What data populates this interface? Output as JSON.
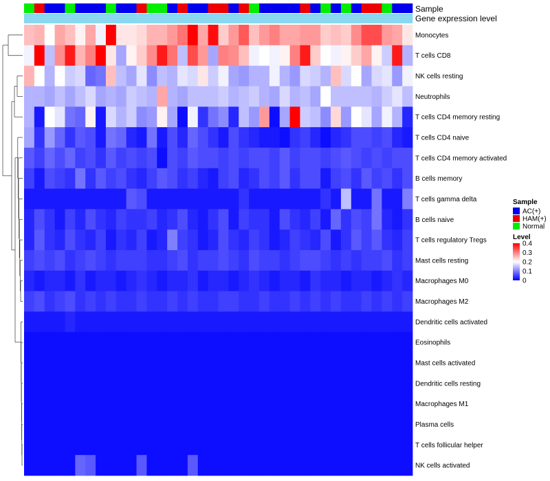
{
  "chart_data": {
    "type": "heatmap",
    "title": "",
    "annotation_rows": [
      "Sample",
      "Gene expression level"
    ],
    "rows": [
      "Monocytes",
      "T cells CD8",
      "NK cells resting",
      "Neutrophils",
      "T cells CD4 memory resting",
      "T cells CD4 naive",
      "T cells CD4 memory activated",
      "B cells memory",
      "T cells gamma delta",
      "B cells naive",
      "T cells regulatory  Tregs",
      "Mast cells resting",
      "Macrophages M0",
      "Macrophages M2",
      "Dendritic cells activated",
      "Eosinophils",
      "Mast cells activated",
      "Dendritic cells resting",
      "Macrophages M1",
      "Plasma cells",
      "T cells follicular helper",
      "NK cells activated"
    ],
    "sample_groups": [
      "Normal",
      "HAM",
      "AC",
      "AC",
      "Normal",
      "AC",
      "AC",
      "AC",
      "Normal",
      "AC",
      "AC",
      "HAM",
      "Normal",
      "Normal",
      "AC",
      "HAM",
      "AC",
      "AC",
      "HAM",
      "HAM",
      "AC",
      "HAM",
      "Normal",
      "AC",
      "AC",
      "AC",
      "AC",
      "HAM",
      "AC",
      "Normal",
      "AC",
      "Normal",
      "AC",
      "HAM",
      "HAM",
      "Normal",
      "AC",
      "AC"
    ],
    "sample_legend": {
      "title": "Sample",
      "entries": [
        {
          "key": "AC",
          "label": "AC(+)",
          "color": "#0000ee"
        },
        {
          "key": "HAM",
          "label": "HAM(+)",
          "color": "#ee0000"
        },
        {
          "key": "Normal",
          "label": "Normal",
          "color": "#00ee00"
        }
      ]
    },
    "expression_annotation_color": "#8ad8ef",
    "color_scale": {
      "title": "Level",
      "min": 0,
      "max": 0.4,
      "ticks": [
        "0.4",
        "0.3",
        "0.2",
        "0.1",
        "0"
      ],
      "colors": [
        "#0000ff",
        "#ffffff",
        "#ff0000"
      ]
    },
    "values": [
      [
        0.25,
        0.26,
        0.2,
        0.27,
        0.25,
        0.21,
        0.27,
        0.19,
        0.4,
        0.22,
        0.22,
        0.23,
        0.26,
        0.26,
        0.28,
        0.31,
        0.4,
        0.27,
        0.39,
        0.24,
        0.28,
        0.33,
        0.25,
        0.28,
        0.3,
        0.27,
        0.27,
        0.28,
        0.28,
        0.24,
        0.25,
        0.24,
        0.29,
        0.34,
        0.34,
        0.28,
        0.27,
        0.22
      ],
      [
        0.19,
        0.4,
        0.15,
        0.29,
        0.38,
        0.26,
        0.3,
        0.4,
        0.22,
        0.13,
        0.21,
        0.24,
        0.29,
        0.38,
        0.31,
        0.15,
        0.34,
        0.28,
        0.13,
        0.3,
        0.29,
        0.25,
        0.19,
        0.2,
        0.19,
        0.21,
        0.3,
        0.38,
        0.24,
        0.2,
        0.19,
        0.21,
        0.24,
        0.27,
        0.21,
        0.16,
        0.38,
        0.14
      ],
      [
        0.26,
        0.2,
        0.14,
        0.2,
        0.16,
        0.17,
        0.08,
        0.09,
        0.25,
        0.15,
        0.13,
        0.18,
        0.11,
        0.15,
        0.14,
        0.18,
        0.17,
        0.22,
        0.16,
        0.19,
        0.13,
        0.12,
        0.14,
        0.14,
        0.19,
        0.14,
        0.12,
        0.17,
        0.16,
        0.14,
        0.25,
        0.17,
        0.2,
        0.13,
        0.17,
        0.18,
        0.12,
        0.19
      ],
      [
        0.14,
        0.14,
        0.13,
        0.15,
        0.13,
        0.15,
        0.17,
        0.13,
        0.14,
        0.13,
        0.16,
        0.15,
        0.14,
        0.27,
        0.14,
        0.13,
        0.15,
        0.15,
        0.15,
        0.16,
        0.14,
        0.15,
        0.16,
        0.14,
        0.13,
        0.17,
        0.14,
        0.15,
        0.13,
        0.2,
        0.15,
        0.15,
        0.15,
        0.15,
        0.14,
        0.16,
        0.18,
        0.15
      ],
      [
        0.14,
        0.02,
        0.2,
        0.18,
        0.09,
        0.08,
        0.21,
        0.02,
        0.17,
        0.14,
        0.16,
        0.11,
        0.12,
        0.21,
        0.13,
        0.01,
        0.19,
        0.04,
        0.09,
        0.11,
        0.03,
        0.15,
        0.12,
        0.28,
        0.01,
        0.13,
        0.4,
        0.16,
        0.15,
        0.11,
        0.23,
        0.12,
        0.2,
        0.18,
        0.13,
        0.19,
        0.14,
        0.03
      ],
      [
        0.13,
        0.04,
        0.12,
        0.08,
        0.04,
        0.07,
        0.06,
        0.02,
        0.09,
        0.08,
        0.03,
        0.02,
        0.09,
        0.02,
        0.06,
        0.03,
        0.08,
        0.06,
        0.04,
        0.02,
        0.06,
        0.04,
        0.03,
        0.02,
        0.02,
        0.01,
        0.04,
        0.05,
        0.03,
        0.01,
        0.03,
        0.04,
        0.06,
        0.06,
        0.05,
        0.06,
        0.03,
        0.02
      ],
      [
        0.07,
        0.05,
        0.08,
        0.06,
        0.08,
        0.05,
        0.06,
        0.04,
        0.07,
        0.05,
        0.06,
        0.05,
        0.06,
        0.01,
        0.06,
        0.05,
        0.07,
        0.06,
        0.06,
        0.05,
        0.06,
        0.05,
        0.06,
        0.06,
        0.05,
        0.07,
        0.05,
        0.06,
        0.06,
        0.05,
        0.06,
        0.07,
        0.06,
        0.05,
        0.06,
        0.05,
        0.06,
        0.06
      ],
      [
        0.05,
        0.02,
        0.06,
        0.05,
        0.04,
        0.09,
        0.04,
        0.07,
        0.05,
        0.06,
        0.04,
        0.03,
        0.05,
        0.07,
        0.06,
        0.04,
        0.05,
        0.03,
        0.02,
        0.05,
        0.06,
        0.03,
        0.04,
        0.06,
        0.05,
        0.07,
        0.04,
        0.06,
        0.06,
        0.02,
        0.05,
        0.06,
        0.04,
        0.07,
        0.05,
        0.06,
        0.04,
        0.06
      ],
      [
        0.02,
        0.02,
        0.02,
        0.02,
        0.02,
        0.02,
        0.02,
        0.02,
        0.02,
        0.02,
        0.07,
        0.06,
        0.02,
        0.02,
        0.02,
        0.02,
        0.02,
        0.02,
        0.02,
        0.02,
        0.02,
        0.04,
        0.02,
        0.02,
        0.02,
        0.02,
        0.02,
        0.02,
        0.02,
        0.04,
        0.02,
        0.15,
        0.02,
        0.02,
        0.09,
        0.02,
        0.02,
        0.1
      ],
      [
        0.03,
        0.06,
        0.04,
        0.02,
        0.05,
        0.03,
        0.06,
        0.04,
        0.03,
        0.05,
        0.04,
        0.04,
        0.05,
        0.03,
        0.04,
        0.06,
        0.03,
        0.02,
        0.04,
        0.06,
        0.02,
        0.05,
        0.04,
        0.04,
        0.02,
        0.06,
        0.04,
        0.03,
        0.05,
        0.02,
        0.08,
        0.04,
        0.06,
        0.05,
        0.09,
        0.03,
        0.02,
        0.04
      ],
      [
        0.03,
        0.07,
        0.04,
        0.03,
        0.06,
        0.04,
        0.03,
        0.05,
        0.02,
        0.04,
        0.03,
        0.05,
        0.02,
        0.03,
        0.1,
        0.05,
        0.04,
        0.02,
        0.03,
        0.06,
        0.04,
        0.03,
        0.05,
        0.04,
        0.02,
        0.03,
        0.05,
        0.04,
        0.03,
        0.06,
        0.02,
        0.04,
        0.07,
        0.05,
        0.07,
        0.04,
        0.03,
        0.05
      ],
      [
        0.05,
        0.06,
        0.05,
        0.06,
        0.04,
        0.05,
        0.06,
        0.05,
        0.04,
        0.05,
        0.05,
        0.05,
        0.04,
        0.04,
        0.05,
        0.06,
        0.04,
        0.05,
        0.05,
        0.06,
        0.05,
        0.04,
        0.06,
        0.05,
        0.05,
        0.04,
        0.05,
        0.06,
        0.06,
        0.05,
        0.04,
        0.05,
        0.04,
        0.05,
        0.05,
        0.06,
        0.04,
        0.05
      ],
      [
        0.03,
        0.02,
        0.03,
        0.03,
        0.02,
        0.04,
        0.02,
        0.03,
        0.03,
        0.02,
        0.03,
        0.04,
        0.03,
        0.02,
        0.03,
        0.03,
        0.04,
        0.02,
        0.03,
        0.03,
        0.02,
        0.03,
        0.04,
        0.03,
        0.02,
        0.03,
        0.03,
        0.02,
        0.04,
        0.03,
        0.03,
        0.02,
        0.03,
        0.03,
        0.02,
        0.03,
        0.04,
        0.03
      ],
      [
        0.05,
        0.06,
        0.04,
        0.05,
        0.06,
        0.04,
        0.05,
        0.04,
        0.05,
        0.04,
        0.04,
        0.05,
        0.04,
        0.04,
        0.05,
        0.04,
        0.05,
        0.04,
        0.04,
        0.05,
        0.05,
        0.04,
        0.04,
        0.05,
        0.04,
        0.04,
        0.05,
        0.04,
        0.05,
        0.04,
        0.05,
        0.04,
        0.04,
        0.05,
        0.04,
        0.05,
        0.04,
        0.05
      ],
      [
        0.02,
        0.02,
        0.02,
        0.02,
        0.03,
        0.02,
        0.02,
        0.02,
        0.02,
        0.02,
        0.02,
        0.02,
        0.02,
        0.02,
        0.02,
        0.02,
        0.02,
        0.02,
        0.02,
        0.02,
        0.02,
        0.02,
        0.02,
        0.02,
        0.02,
        0.02,
        0.02,
        0.02,
        0.02,
        0.02,
        0.02,
        0.02,
        0.02,
        0.02,
        0.02,
        0.02,
        0.02,
        0.02
      ],
      [
        0.01,
        0.01,
        0.01,
        0.01,
        0.01,
        0.01,
        0.01,
        0.01,
        0.01,
        0.01,
        0.01,
        0.01,
        0.01,
        0.01,
        0.01,
        0.01,
        0.01,
        0.01,
        0.01,
        0.01,
        0.01,
        0.01,
        0.01,
        0.01,
        0.01,
        0.01,
        0.01,
        0.01,
        0.01,
        0.01,
        0.01,
        0.01,
        0.01,
        0.01,
        0.01,
        0.01,
        0.01,
        0.01
      ],
      [
        0.01,
        0.01,
        0.01,
        0.01,
        0.01,
        0.01,
        0.01,
        0.01,
        0.01,
        0.01,
        0.01,
        0.01,
        0.01,
        0.01,
        0.01,
        0.01,
        0.01,
        0.01,
        0.01,
        0.01,
        0.01,
        0.01,
        0.01,
        0.01,
        0.01,
        0.01,
        0.01,
        0.01,
        0.01,
        0.01,
        0.01,
        0.01,
        0.01,
        0.01,
        0.01,
        0.01,
        0.01,
        0.01
      ],
      [
        0.01,
        0.01,
        0.01,
        0.01,
        0.01,
        0.01,
        0.01,
        0.01,
        0.01,
        0.01,
        0.01,
        0.01,
        0.01,
        0.01,
        0.01,
        0.01,
        0.01,
        0.01,
        0.01,
        0.01,
        0.01,
        0.01,
        0.01,
        0.01,
        0.01,
        0.01,
        0.01,
        0.01,
        0.01,
        0.01,
        0.01,
        0.01,
        0.01,
        0.01,
        0.01,
        0.01,
        0.01,
        0.01
      ],
      [
        0.01,
        0.01,
        0.01,
        0.01,
        0.01,
        0.01,
        0.01,
        0.01,
        0.01,
        0.01,
        0.01,
        0.01,
        0.01,
        0.01,
        0.01,
        0.01,
        0.01,
        0.01,
        0.01,
        0.01,
        0.01,
        0.01,
        0.01,
        0.01,
        0.01,
        0.01,
        0.01,
        0.01,
        0.01,
        0.01,
        0.01,
        0.01,
        0.01,
        0.01,
        0.01,
        0.01,
        0.01,
        0.01
      ],
      [
        0.01,
        0.01,
        0.01,
        0.01,
        0.01,
        0.01,
        0.01,
        0.01,
        0.01,
        0.01,
        0.01,
        0.01,
        0.01,
        0.01,
        0.01,
        0.01,
        0.01,
        0.01,
        0.01,
        0.01,
        0.01,
        0.01,
        0.01,
        0.01,
        0.01,
        0.01,
        0.01,
        0.01,
        0.01,
        0.01,
        0.01,
        0.01,
        0.01,
        0.01,
        0.01,
        0.01,
        0.01,
        0.01
      ],
      [
        0.01,
        0.01,
        0.01,
        0.01,
        0.01,
        0.01,
        0.01,
        0.01,
        0.01,
        0.01,
        0.01,
        0.01,
        0.01,
        0.01,
        0.01,
        0.01,
        0.01,
        0.01,
        0.01,
        0.01,
        0.01,
        0.01,
        0.01,
        0.01,
        0.01,
        0.01,
        0.01,
        0.01,
        0.01,
        0.01,
        0.01,
        0.01,
        0.01,
        0.01,
        0.01,
        0.01,
        0.01,
        0.01
      ],
      [
        0.01,
        0.01,
        0.01,
        0.01,
        0.01,
        0.08,
        0.07,
        0.01,
        0.01,
        0.01,
        0.01,
        0.07,
        0.01,
        0.01,
        0.01,
        0.01,
        0.07,
        0.01,
        0.01,
        0.01,
        0.01,
        0.01,
        0.01,
        0.01,
        0.01,
        0.01,
        0.01,
        0.01,
        0.01,
        0.01,
        0.01,
        0.01,
        0.01,
        0.01,
        0.01,
        0.01,
        0.01,
        0.01
      ]
    ]
  }
}
